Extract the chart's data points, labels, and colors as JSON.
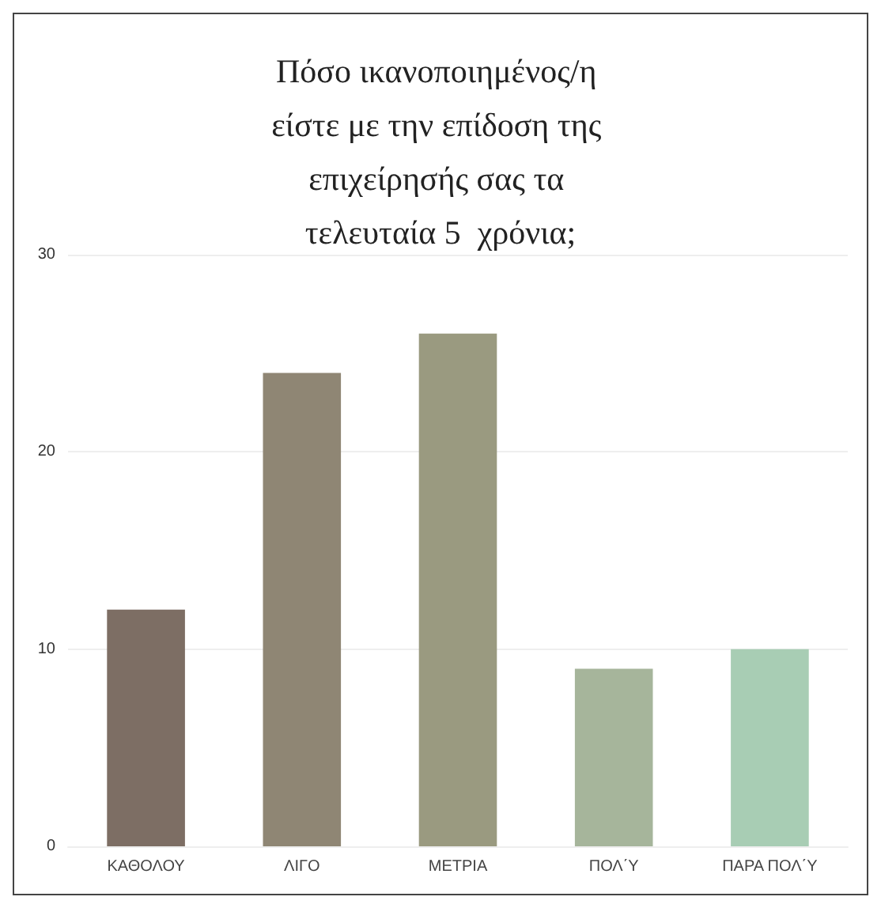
{
  "chart_data": {
    "type": "bar",
    "title": "Πόσο ικανοποιημένος/η είστε με την επίδοση της επιχείρησής σας τα τελευταία 5  χρόνια;",
    "categories": [
      "ΚΑΘΟΛΟΥ",
      "ΛΙΓΟ",
      "ΜΕΤΡΙΑ",
      "ΠΟΛ΄Υ",
      "ΠΑΡΑ ΠΟΛ΄Υ"
    ],
    "values": [
      12,
      24,
      26,
      9,
      10
    ],
    "colors": [
      "#7d6e64",
      "#8f8674",
      "#9a9a80",
      "#a6b59b",
      "#a8cdb4"
    ],
    "ylim": [
      0,
      30
    ],
    "yticks": [
      0,
      10,
      20,
      30
    ],
    "grid": "y"
  }
}
